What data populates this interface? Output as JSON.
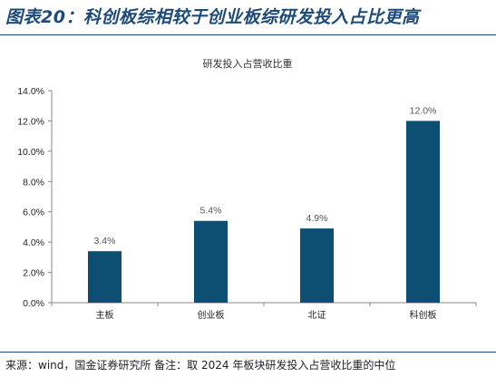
{
  "figure": {
    "title": "图表20：科创板综相较于创业板综研发投入占比更高",
    "source": "来源：wind，国金证券研究所 备注：取 2024 年板块研发投入占营收比重的中位"
  },
  "chart_data": {
    "type": "bar",
    "title": "研发投入占营收比重",
    "categories": [
      "主板",
      "创业板",
      "北证",
      "科创板"
    ],
    "values": [
      3.4,
      5.4,
      4.9,
      12.0
    ],
    "data_labels": [
      "3.4%",
      "5.4%",
      "4.9%",
      "12.0%"
    ],
    "ylim": [
      0,
      14
    ],
    "yticks": [
      0,
      2,
      4,
      6,
      8,
      10,
      12,
      14
    ],
    "ytick_labels": [
      "0.0%",
      "2.0%",
      "4.0%",
      "6.0%",
      "8.0%",
      "10.0%",
      "12.0%",
      "14.0%"
    ],
    "xlabel": "",
    "ylabel": "",
    "grid": false,
    "bar_color": "#0d4f73"
  }
}
